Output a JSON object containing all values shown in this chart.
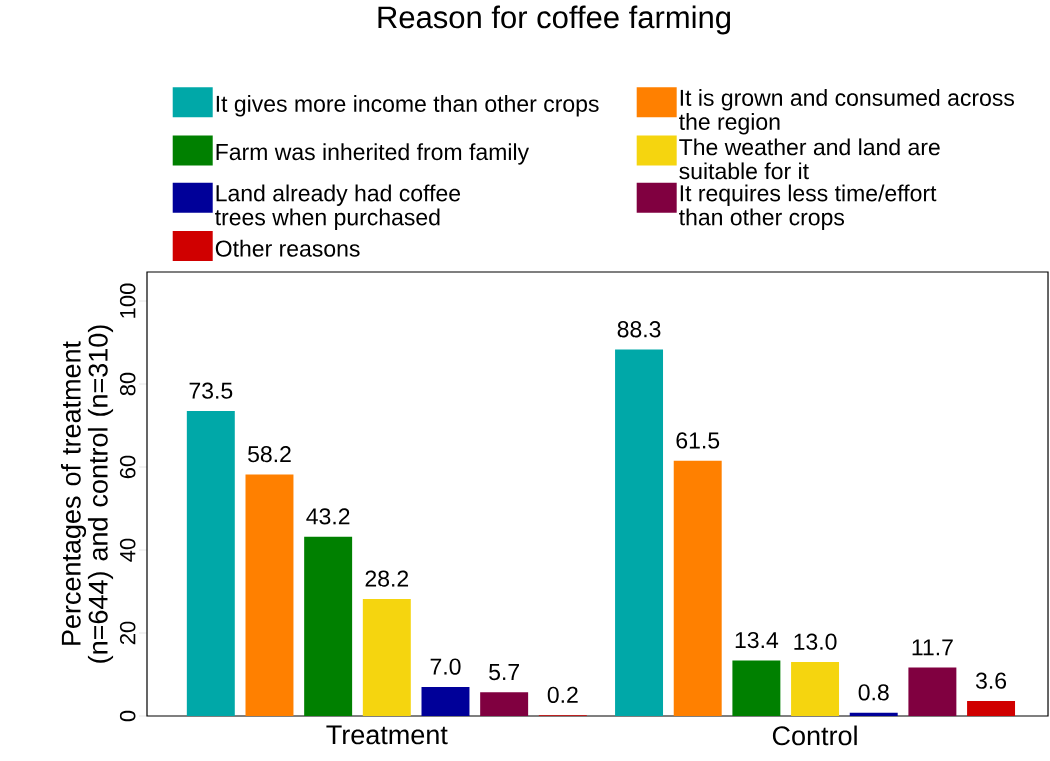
{
  "chart_data": {
    "type": "bar",
    "title": "Reason for coffee farming",
    "ylabel": "Percentages of treatment (n=644) and control (n=310)",
    "categories": [
      "Treatment",
      "Control"
    ],
    "series": [
      {
        "name": "It gives more income than other crops",
        "color": "#00a8a8",
        "values": [
          73.5,
          88.3
        ],
        "value_labels": [
          "73.5",
          "88.3"
        ]
      },
      {
        "name": "It is grown and consumed across the region",
        "color": "#ff8000",
        "values": [
          58.2,
          61.5
        ],
        "value_labels": [
          "58.2",
          "61.5"
        ]
      },
      {
        "name": "Farm was inherited from family",
        "color": "#008000",
        "values": [
          43.2,
          13.4
        ],
        "value_labels": [
          "43.2",
          "13.4"
        ]
      },
      {
        "name": "The weather and land are suitable for it",
        "color": "#f5d50f",
        "values": [
          28.2,
          13.0
        ],
        "value_labels": [
          "28.2",
          "13.0"
        ]
      },
      {
        "name": "Land already had coffee trees when purchased",
        "color": "#000099",
        "values": [
          7.0,
          0.8
        ],
        "value_labels": [
          "7.0",
          "0.8"
        ]
      },
      {
        "name": "It requires less time/effort than other crops",
        "color": "#800040",
        "values": [
          5.7,
          11.7
        ],
        "value_labels": [
          "5.7",
          "11.7"
        ]
      },
      {
        "name": "Other reasons",
        "color": "#d00000",
        "values": [
          0.2,
          3.6
        ],
        "value_labels": [
          "0.2",
          "3.6"
        ]
      }
    ],
    "ylim": [
      0,
      107
    ],
    "yticks": [
      0,
      20,
      40,
      60,
      80,
      100
    ],
    "legend": "top",
    "grid": false
  }
}
